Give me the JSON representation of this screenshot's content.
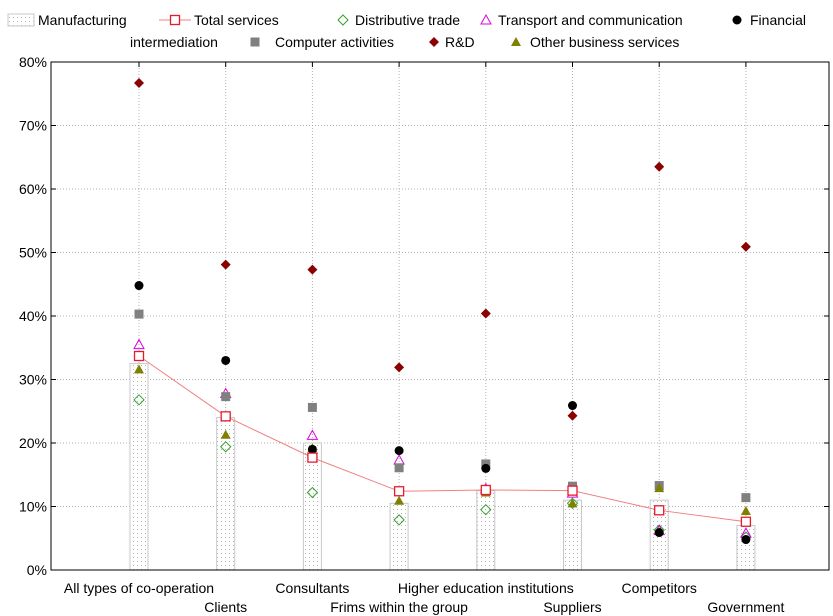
{
  "chart_data": {
    "type": "scatter",
    "title": "",
    "xlabel": "",
    "ylabel": "",
    "ylim": [
      0,
      80
    ],
    "y_tick_suffix": "%",
    "y_ticks": [
      0,
      10,
      20,
      30,
      40,
      50,
      60,
      70,
      80
    ],
    "grid": true,
    "legend_position": "top",
    "categories": [
      "All types of co-operation",
      "Clients",
      "Consultants",
      "Frims within the group",
      "Higher education institutions",
      "Suppliers",
      "Competitors",
      "Government"
    ],
    "series": [
      {
        "name": "Manufacturing",
        "kind": "bar",
        "color": "#c8c8c8",
        "values": [
          32.5,
          24.0,
          20.0,
          10.5,
          12.5,
          11.0,
          11.0,
          7.0
        ]
      },
      {
        "name": "Total services",
        "kind": "line-open-square",
        "color": "#e8192c",
        "values": [
          33.7,
          24.2,
          17.7,
          12.4,
          12.6,
          12.5,
          9.4,
          7.6
        ]
      },
      {
        "name": "Distributive trade",
        "kind": "open-diamond",
        "color": "#33a02c",
        "values": [
          26.8,
          19.4,
          12.2,
          7.9,
          9.5,
          10.5,
          6.3,
          5.2
        ]
      },
      {
        "name": "Transport and communication",
        "kind": "open-triangle",
        "color": "#e000e0",
        "values": [
          35.5,
          27.8,
          21.2,
          17.3,
          12.8,
          12.1,
          6.2,
          5.8
        ]
      },
      {
        "name": "Financial intermediation",
        "kind": "circle",
        "color": "#000000",
        "values": [
          44.8,
          33.0,
          19.0,
          18.8,
          16.0,
          25.9,
          5.9,
          4.8
        ]
      },
      {
        "name": "Computer activities",
        "kind": "square",
        "color": "#808080",
        "values": [
          40.3,
          27.3,
          25.6,
          16.1,
          16.7,
          13.2,
          13.3,
          11.4
        ]
      },
      {
        "name": "R&D",
        "kind": "diamond",
        "color": "#8b0000",
        "values": [
          76.7,
          48.1,
          47.3,
          31.9,
          40.4,
          24.3,
          63.5,
          50.9
        ]
      },
      {
        "name": "Other business services",
        "kind": "triangle",
        "color": "#808000",
        "values": [
          31.6,
          21.3,
          19.2,
          10.9,
          12.2,
          10.5,
          12.9,
          9.3
        ]
      }
    ]
  }
}
